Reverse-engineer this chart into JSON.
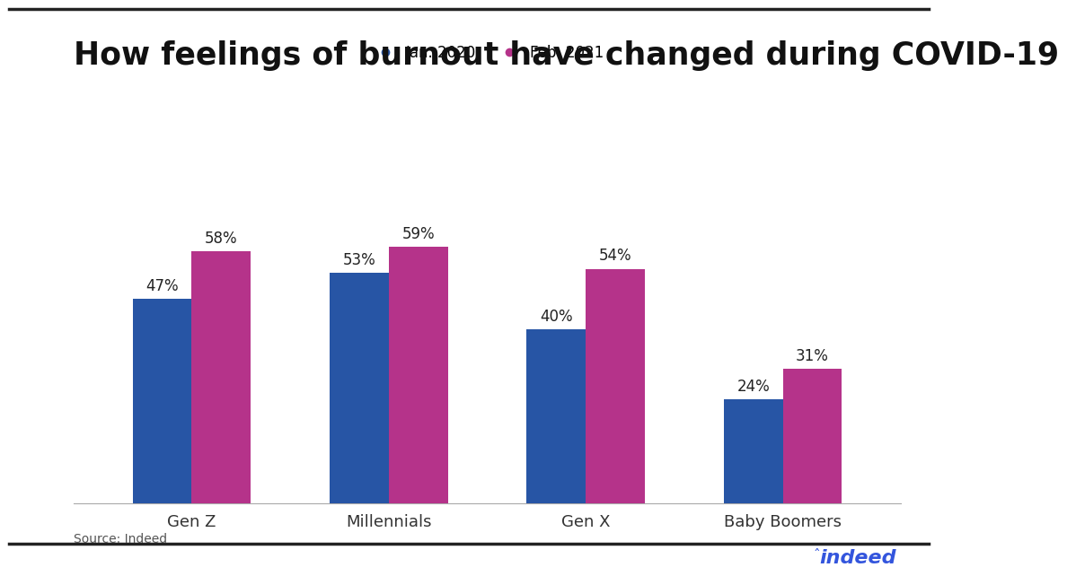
{
  "title": "How feelings of burnout have changed during COVID-19",
  "categories": [
    "Gen Z",
    "Millennials",
    "Gen X",
    "Baby Boomers"
  ],
  "series": [
    {
      "label": "Jan. 2020",
      "values": [
        47,
        53,
        40,
        24
      ],
      "color": "#2755a5"
    },
    {
      "label": "Feb. 2021",
      "values": [
        58,
        59,
        54,
        31
      ],
      "color": "#b5338a"
    }
  ],
  "bar_width": 0.3,
  "ylim": [
    0,
    70
  ],
  "source_text": "Source: Indeed",
  "background_color": "#ffffff",
  "title_fontsize": 25,
  "label_fontsize": 12,
  "tick_fontsize": 13,
  "source_fontsize": 10,
  "annotation_fontsize": 12,
  "top_border_color": "#222222",
  "bottom_border_color": "#222222",
  "indeed_color": "#3355dd",
  "indeed_text": "indeed"
}
